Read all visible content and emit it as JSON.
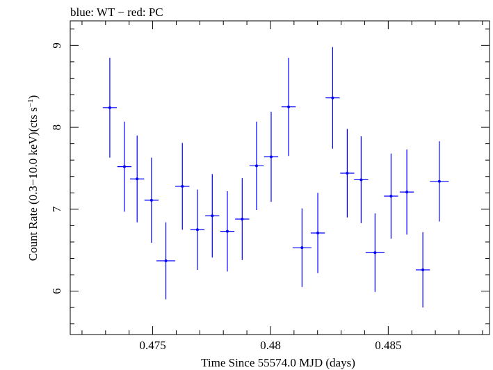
{
  "chart_data": {
    "type": "scatter",
    "title": "blue: WT − red: PC",
    "xlabel": "Time Since 55574.0 MJD (days)",
    "ylabel_main": "Count Rate (0.3−10.0 keV)(cts s",
    "ylabel_sup": "−1",
    "ylabel_close": ")",
    "xlim": [
      0.4715,
      0.4893
    ],
    "ylim": [
      5.47,
      9.3
    ],
    "x_ticks": [
      {
        "value": 0.475,
        "label": "0.475"
      },
      {
        "value": 0.48,
        "label": "0.48"
      },
      {
        "value": 0.485,
        "label": "0.485"
      }
    ],
    "y_ticks": [
      {
        "value": 6,
        "label": "6"
      },
      {
        "value": 7,
        "label": "7"
      },
      {
        "value": 8,
        "label": "8"
      },
      {
        "value": 9,
        "label": "9"
      }
    ],
    "series": [
      {
        "color": "#0000ff",
        "points": [
          {
            "x": 0.47318,
            "y": 8.24,
            "xerr": 0.0003,
            "yerr": 0.61
          },
          {
            "x": 0.4738,
            "y": 7.52,
            "xerr": 0.0003,
            "yerr": 0.55
          },
          {
            "x": 0.47434,
            "y": 7.37,
            "xerr": 0.0003,
            "yerr": 0.53
          },
          {
            "x": 0.47495,
            "y": 7.11,
            "xerr": 0.0003,
            "yerr": 0.52
          },
          {
            "x": 0.47556,
            "y": 6.37,
            "xerr": 0.0004,
            "yerr": 0.47
          },
          {
            "x": 0.47626,
            "y": 7.28,
            "xerr": 0.0003,
            "yerr": 0.53
          },
          {
            "x": 0.4769,
            "y": 6.75,
            "xerr": 0.0003,
            "yerr": 0.49
          },
          {
            "x": 0.47753,
            "y": 6.92,
            "xerr": 0.0003,
            "yerr": 0.51
          },
          {
            "x": 0.47817,
            "y": 6.73,
            "xerr": 0.0003,
            "yerr": 0.49
          },
          {
            "x": 0.4788,
            "y": 6.88,
            "xerr": 0.0003,
            "yerr": 0.5
          },
          {
            "x": 0.47941,
            "y": 7.53,
            "xerr": 0.0003,
            "yerr": 0.54
          },
          {
            "x": 0.48003,
            "y": 7.64,
            "xerr": 0.0003,
            "yerr": 0.55
          },
          {
            "x": 0.48077,
            "y": 8.25,
            "xerr": 0.0003,
            "yerr": 0.6
          },
          {
            "x": 0.48134,
            "y": 6.53,
            "xerr": 0.0004,
            "yerr": 0.48
          },
          {
            "x": 0.48201,
            "y": 6.71,
            "xerr": 0.0003,
            "yerr": 0.49
          },
          {
            "x": 0.48264,
            "y": 8.36,
            "xerr": 0.0003,
            "yerr": 0.62
          },
          {
            "x": 0.48326,
            "y": 7.44,
            "xerr": 0.0003,
            "yerr": 0.54
          },
          {
            "x": 0.48385,
            "y": 7.36,
            "xerr": 0.0003,
            "yerr": 0.53
          },
          {
            "x": 0.48444,
            "y": 6.47,
            "xerr": 0.0004,
            "yerr": 0.48
          },
          {
            "x": 0.48512,
            "y": 7.16,
            "xerr": 0.0003,
            "yerr": 0.52
          },
          {
            "x": 0.48579,
            "y": 7.21,
            "xerr": 0.0003,
            "yerr": 0.52
          },
          {
            "x": 0.48647,
            "y": 6.26,
            "xerr": 0.0003,
            "yerr": 0.46
          },
          {
            "x": 0.48717,
            "y": 7.34,
            "xerr": 0.0004,
            "yerr": 0.49
          }
        ]
      }
    ]
  }
}
